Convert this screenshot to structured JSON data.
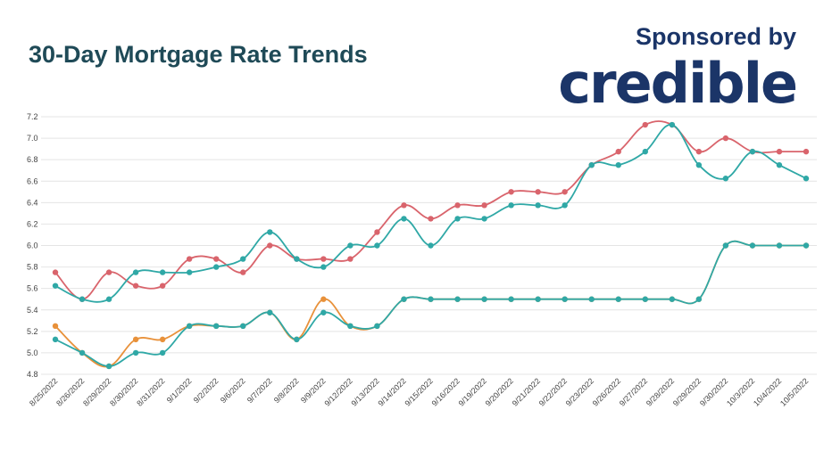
{
  "header": {
    "title": "30-Day Mortgage Rate Trends",
    "sponsor_label": "Sponsored by",
    "brand": "credible"
  },
  "colors": {
    "title": "#1f4a57",
    "brand": "#1b3568",
    "series_red": "#d9646c",
    "series_teal": "#2fa8a6",
    "series_orange": "#e8913a",
    "grid": "#e4e4e4"
  },
  "chart_data": {
    "type": "line",
    "title": "30-Day Mortgage Rate Trends",
    "x": [
      "8/25/2022",
      "8/26/2022",
      "8/29/2022",
      "8/30/2022",
      "8/31/2022",
      "9/1/2022",
      "9/2/2022",
      "9/6/2022",
      "9/7/2022",
      "9/8/2022",
      "9/9/2022",
      "9/12/2022",
      "9/13/2022",
      "9/14/2022",
      "9/15/2022",
      "9/16/2022",
      "9/19/2022",
      "9/20/2022",
      "9/21/2022",
      "9/22/2022",
      "9/23/2022",
      "9/26/2022",
      "9/27/2022",
      "9/28/2022",
      "9/29/2022",
      "9/30/2022",
      "10/3/2022",
      "10/4/2022",
      "10/5/2022"
    ],
    "yticks": [
      "4.8",
      "5.0",
      "5.2",
      "5.4",
      "5.6",
      "5.8",
      "6.0",
      "6.2",
      "6.4",
      "6.6",
      "6.8",
      "7.0",
      "7.2"
    ],
    "ylim": [
      4.8,
      7.2
    ],
    "grid": true,
    "legend": "none",
    "series": [
      {
        "color": "#d9646c",
        "values": [
          5.75,
          5.5,
          5.75,
          5.625,
          5.625,
          5.875,
          5.875,
          5.75,
          6.0,
          5.875,
          5.875,
          5.875,
          6.125,
          6.375,
          6.25,
          6.375,
          6.375,
          6.5,
          6.5,
          6.5,
          6.75,
          6.875,
          7.125,
          7.125,
          6.875,
          7.0,
          6.875,
          6.875,
          6.875
        ]
      },
      {
        "color": "#2fa8a6",
        "values": [
          5.625,
          5.5,
          5.5,
          5.75,
          5.75,
          5.75,
          5.8,
          5.875,
          6.125,
          5.875,
          5.8,
          6.0,
          6.0,
          6.25,
          6.0,
          6.25,
          6.25,
          6.375,
          6.375,
          6.375,
          6.75,
          6.75,
          6.875,
          7.125,
          6.75,
          6.625,
          6.875,
          6.75,
          6.625
        ]
      },
      {
        "color": "#e8913a",
        "values": [
          5.25,
          5.0,
          4.875,
          5.125,
          5.125,
          5.25,
          5.25,
          5.25,
          5.375,
          5.125,
          5.5,
          5.25,
          5.25,
          5.5,
          5.5,
          5.5,
          5.5,
          5.5,
          5.5,
          5.5,
          5.5,
          5.5,
          5.5,
          5.5,
          5.5,
          6.0,
          6.0,
          6.0,
          6.0
        ]
      },
      {
        "color": "#2fa8a6",
        "values": [
          5.125,
          5.0,
          4.875,
          5.0,
          5.0,
          5.25,
          5.25,
          5.25,
          5.375,
          5.125,
          5.375,
          5.25,
          5.25,
          5.5,
          5.5,
          5.5,
          5.5,
          5.5,
          5.5,
          5.5,
          5.5,
          5.5,
          5.5,
          5.5,
          5.5,
          6.0,
          6.0,
          6.0,
          6.0
        ]
      }
    ]
  }
}
